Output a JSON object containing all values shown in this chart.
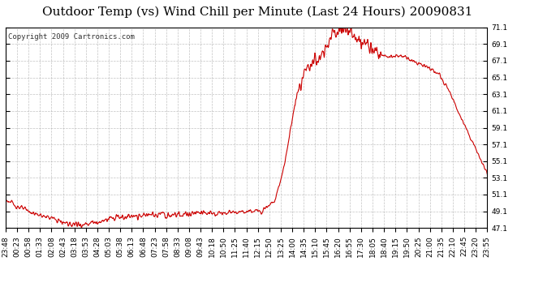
{
  "title": "Outdoor Temp (vs) Wind Chill per Minute (Last 24 Hours) 20090831",
  "copyright": "Copyright 2009 Cartronics.com",
  "line_color": "#cc0000",
  "background_color": "#ffffff",
  "grid_color": "#aaaaaa",
  "ylim": [
    47.1,
    71.1
  ],
  "yticks": [
    47.1,
    49.1,
    51.1,
    53.1,
    55.1,
    57.1,
    59.1,
    61.1,
    63.1,
    65.1,
    67.1,
    69.1,
    71.1
  ],
  "title_fontsize": 11,
  "copyright_fontsize": 6.5,
  "tick_label_fontsize": 6.5,
  "x_tick_labels": [
    "23:48",
    "00:23",
    "00:58",
    "01:33",
    "02:08",
    "02:43",
    "03:18",
    "03:53",
    "04:28",
    "05:03",
    "05:38",
    "06:13",
    "06:48",
    "07:23",
    "07:58",
    "08:33",
    "09:08",
    "09:43",
    "10:18",
    "10:50",
    "11:25",
    "11:40",
    "12:15",
    "12:50",
    "13:25",
    "14:00",
    "14:35",
    "15:10",
    "15:45",
    "16:20",
    "16:55",
    "17:30",
    "18:05",
    "18:40",
    "19:15",
    "19:50",
    "20:25",
    "21:00",
    "21:35",
    "22:10",
    "22:45",
    "23:20",
    "23:55"
  ],
  "ctrl_t": [
    0,
    0.02,
    0.06,
    0.1,
    0.13,
    0.16,
    0.19,
    0.22,
    0.26,
    0.3,
    0.35,
    0.4,
    0.45,
    0.5,
    0.53,
    0.56,
    0.58,
    0.6,
    0.62,
    0.64,
    0.66,
    0.68,
    0.7,
    0.72,
    0.74,
    0.76,
    0.78,
    0.8,
    0.82,
    0.84,
    0.87,
    0.9,
    0.92,
    0.94,
    0.96,
    0.98,
    1.0
  ],
  "ctrl_v": [
    50.5,
    49.8,
    48.8,
    48.2,
    47.7,
    47.5,
    47.8,
    48.3,
    48.5,
    48.7,
    48.6,
    48.8,
    48.9,
    49.0,
    49.2,
    50.5,
    55.0,
    62.0,
    65.5,
    67.0,
    68.2,
    70.5,
    71.0,
    70.2,
    69.5,
    68.5,
    67.8,
    67.5,
    67.8,
    67.2,
    66.5,
    65.5,
    63.5,
    61.0,
    58.5,
    56.0,
    53.5
  ]
}
